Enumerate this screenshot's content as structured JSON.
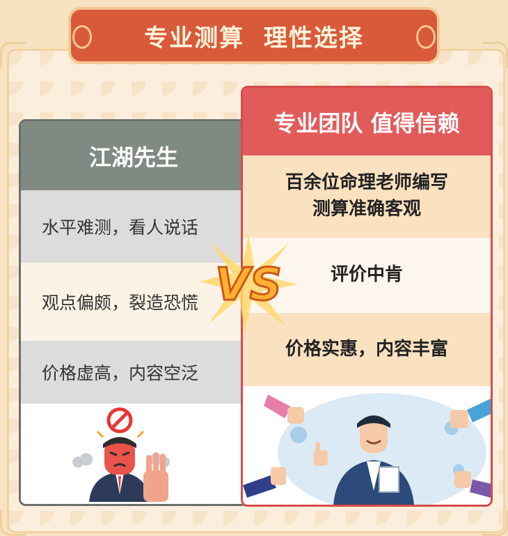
{
  "banner": {
    "title": "专业测算  理性选择"
  },
  "left": {
    "title": "江湖先生",
    "rows": [
      "水平难测，看人说话",
      "观点偏颇，裂造恐慌",
      "价格虚高，内容空泛"
    ]
  },
  "right": {
    "title": "专业团队 值得信赖",
    "rows": [
      [
        "百余位命理老师编写",
        "测算准确客观"
      ],
      [
        "评价中肯"
      ],
      [
        "价格实惠，内容丰富"
      ]
    ]
  },
  "vs": {
    "text": "VS"
  },
  "colors": {
    "banner": "#d85a3a",
    "left_header": "#7f8b82",
    "right_header": "#e25b5b",
    "accent": "#f5a623"
  }
}
